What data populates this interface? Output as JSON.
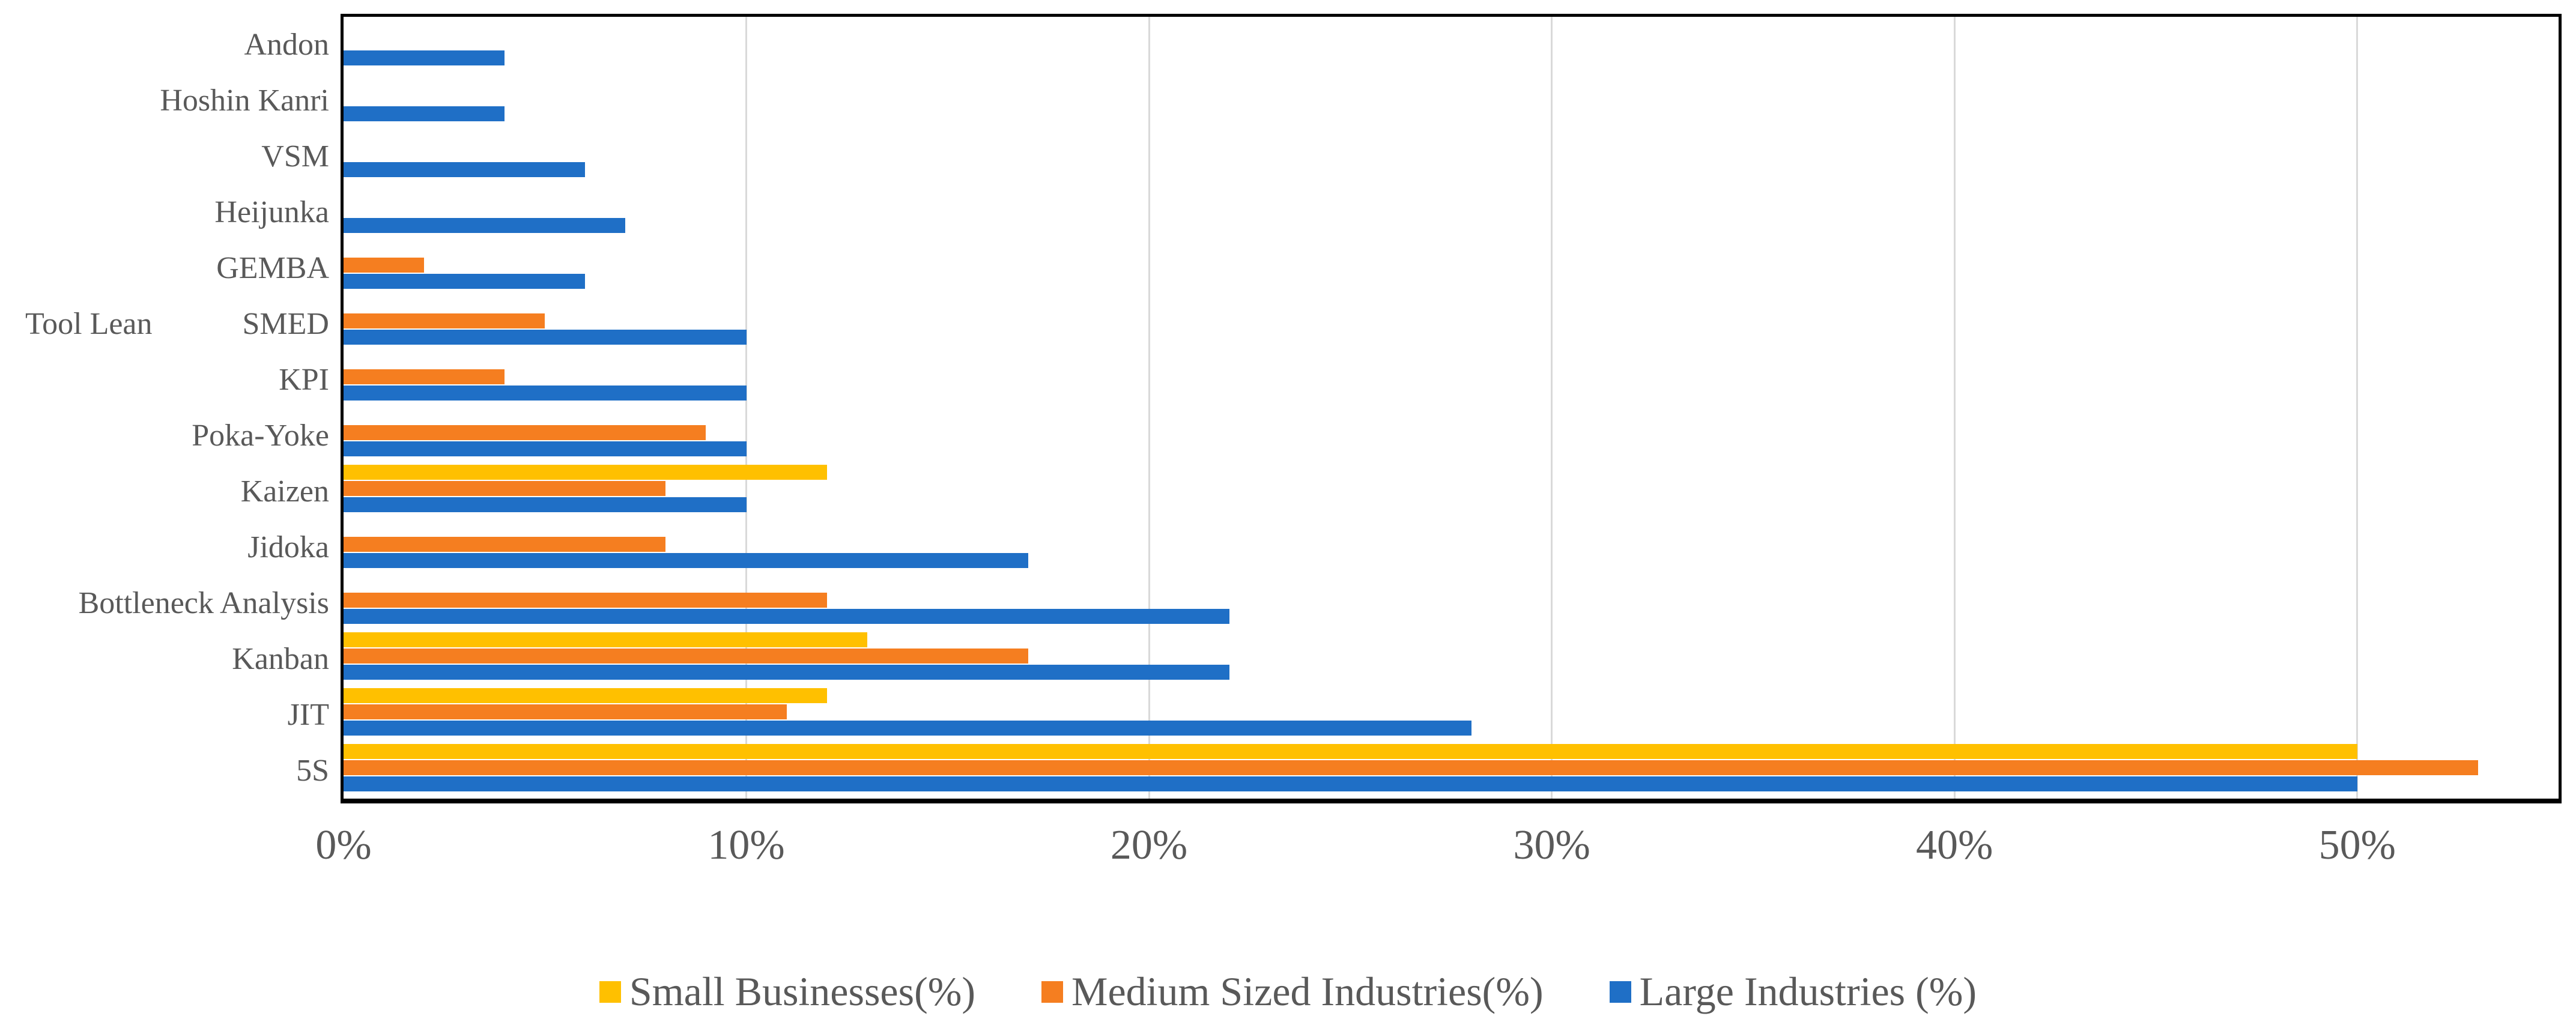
{
  "chart_data": {
    "type": "bar",
    "orientation": "horizontal",
    "title": "",
    "ylabel": "Tool Lean",
    "xlabel": "",
    "categories": [
      "Andon",
      "Hoshin Kanri",
      "VSM",
      "Heijunka",
      "GEMBA",
      "SMED",
      "KPI",
      "Poka-Yoke",
      "Kaizen",
      "Jidoka",
      "Bottleneck Analysis",
      "Kanban",
      "JIT",
      "5S"
    ],
    "series": [
      {
        "name": "Small Businesses(%)",
        "color": "#FFC000",
        "values": [
          0,
          0,
          0,
          0,
          0,
          0,
          0,
          0,
          12,
          0,
          0,
          13,
          12,
          50
        ]
      },
      {
        "name": "Medium Sized Industries(%)",
        "color": "#F57E20",
        "values": [
          0,
          0,
          0,
          0,
          2,
          5,
          4,
          9,
          8,
          8,
          12,
          17,
          11,
          53
        ]
      },
      {
        "name": "Large Industries (%)",
        "color": "#1F6FC6",
        "values": [
          4,
          4,
          6,
          7,
          6,
          10,
          10,
          10,
          10,
          17,
          22,
          22,
          28,
          50
        ]
      }
    ],
    "x_axis": {
      "min": 0,
      "max": 55,
      "unit": "%",
      "tick_values": [
        0,
        10,
        20,
        30,
        40,
        50
      ],
      "tick_labels": [
        "0%",
        "10%",
        "20%",
        "30%",
        "40%",
        "50%"
      ],
      "gridlines": true
    },
    "legend_position": "bottom"
  },
  "colors": {
    "axis_text": "#595959",
    "gridline": "#D9D9D9",
    "plot_border": "#000000",
    "background": "#FFFFFF"
  }
}
